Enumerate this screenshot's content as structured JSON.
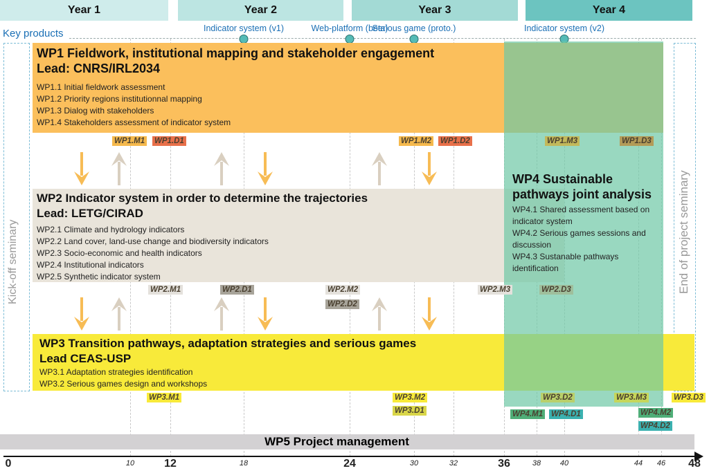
{
  "years": [
    "Year 1",
    "Year 2",
    "Year 3",
    "Year 4"
  ],
  "year_colors": [
    "#cfeceb",
    "#bce5e2",
    "#a3dad5",
    "#6cc4c0"
  ],
  "key_products": {
    "label": "Key products",
    "items": [
      "Indicator system (v1)",
      "Web-platform (beta)",
      "Serious game (proto.)",
      "Indicator system (v2)"
    ],
    "months": [
      18,
      24,
      30,
      40
    ]
  },
  "kickoff": "Kick-off seminary",
  "end": "End of project  seminary",
  "wp1": {
    "title": "WP1 Fieldwork, institutional mapping and stakeholder engagement",
    "lead": "Lead: CNRS/IRL2034",
    "tasks": [
      "WP1.1 Initial  fieldwork assessment",
      "WP1.2 Priority regions institutionnal  mapping",
      "WP1.3 Dialog with stakeholders",
      "WP1.4 Stakeholders  assessment of indicator system"
    ],
    "color": "#fbbf5c"
  },
  "wp2": {
    "title": "WP2 Indicator system in order to determine the trajectories",
    "lead": "Lead: LETG/CIRAD",
    "tasks": [
      "WP2.1 Climate and hydrology indicators",
      "WP2.2 Land cover, land-use change and biodiversity indicators",
      "WP2.3 Socio-economic and health indicators",
      "WP2.4 Institutional indicators",
      "WP2.5 Synthetic indicator system"
    ],
    "color": "#e9e4da"
  },
  "wp3": {
    "title": "WP3 Transition pathways, adaptation strategies and serious games",
    "lead": "Lead CEAS-USP",
    "tasks": [
      "WP3.1 Adaptation strategies identification",
      "WP3.2 Serious games design and workshops"
    ],
    "color": "#f8ea3a"
  },
  "wp4": {
    "title1": "WP4 Sustainable",
    "title2": "pathways joint analysis",
    "tasks": [
      "WP4.1 Shared assessment based on",
      "indicator system",
      "WP4.2 Serious games sessions and",
      "discussion",
      "WP4.3 Sustanable pathways",
      "identification"
    ],
    "color": "#7fcdb0"
  },
  "wp5": {
    "title": "WP5 Project management",
    "color": "#d3d1d3"
  },
  "milestones": [
    {
      "label": "WP1.M1",
      "color": "#f5b94d"
    },
    {
      "label": "WP1.D1",
      "color": "#e8704a"
    },
    {
      "label": "WP1.M2",
      "color": "#f5b94d"
    },
    {
      "label": "WP1.D2",
      "color": "#e8704a"
    },
    {
      "label": "WP1.M3",
      "color": "#c2b85a"
    },
    {
      "label": "WP1.D3",
      "color": "#b39b58"
    },
    {
      "label": "WP2.M1",
      "color": "#e4e1dc"
    },
    {
      "label": "WP2.D1",
      "color": "#a8a49a"
    },
    {
      "label": "WP2.M2",
      "color": "#e4e1dc"
    },
    {
      "label": "WP2.D2",
      "color": "#a8a49a"
    },
    {
      "label": "WP2.M3",
      "color": "#e4e1dc"
    },
    {
      "label": "WP2.D3",
      "color": "#9fbf9c"
    },
    {
      "label": "WP3.M1",
      "color": "#f8ea3a"
    },
    {
      "label": "WP3.M2",
      "color": "#f8ea3a"
    },
    {
      "label": "WP3.D1",
      "color": "#d9d649"
    },
    {
      "label": "WP3.D2",
      "color": "#b9cf6a"
    },
    {
      "label": "WP3.M3",
      "color": "#c6d65a"
    },
    {
      "label": "WP3.D3",
      "color": "#f8ea3a"
    },
    {
      "label": "WP4.M1",
      "color": "#4fae78"
    },
    {
      "label": "WP4.D1",
      "color": "#3bb1b0"
    },
    {
      "label": "WP4.M2",
      "color": "#4fae78"
    },
    {
      "label": "WP4.D2",
      "color": "#3bb1b0"
    }
  ],
  "axis": {
    "ticks": [
      0,
      10,
      12,
      18,
      24,
      30,
      32,
      36,
      38,
      40,
      44,
      46,
      48
    ],
    "major": [
      0,
      12,
      24,
      36,
      48
    ]
  }
}
